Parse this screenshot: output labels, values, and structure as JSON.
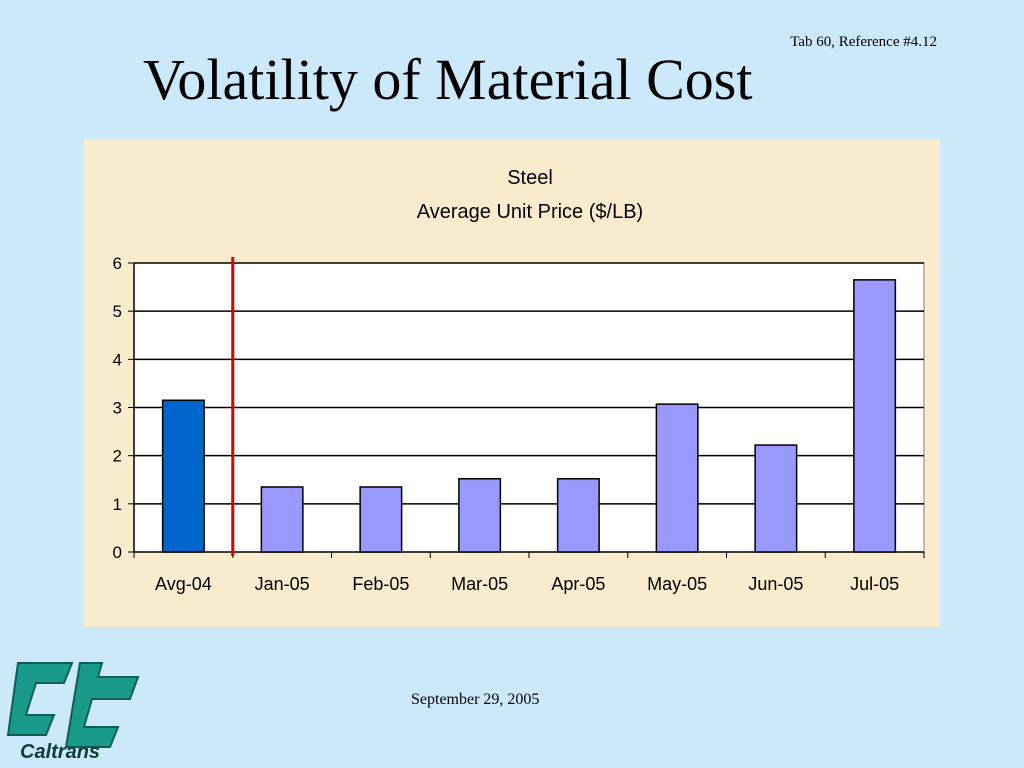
{
  "slide": {
    "reference": "Tab 60, Reference #4.12",
    "title": "Volatility of Material Cost",
    "date": "September 29, 2005",
    "logo_text": "Caltrans"
  },
  "colors": {
    "background": "#cce8fb",
    "chart_panel": "#f9eccd",
    "plot_area": "#ffffff",
    "avg_bar": "#0066cc",
    "month_bar": "#9999ff",
    "divider_line": "#dd0000",
    "logo": "#1a9a8a"
  },
  "chart_data": {
    "type": "bar",
    "title": "Steel",
    "subtitle": "Average Unit Price ($/LB)",
    "xlabel": "",
    "ylabel": "",
    "categories": [
      "Avg-04",
      "Jan-05",
      "Feb-05",
      "Mar-05",
      "Apr-05",
      "May-05",
      "Jun-05",
      "Jul-05"
    ],
    "values": [
      3.15,
      1.35,
      1.35,
      1.52,
      1.52,
      3.07,
      2.22,
      5.65
    ],
    "ylim": [
      0,
      6
    ],
    "yticks": [
      "0",
      "1",
      "2",
      "3",
      "4",
      "5",
      "6"
    ],
    "grid": true,
    "legend": "none",
    "annotations": [
      "vertical red divider line between Avg-04 and Jan-05"
    ]
  }
}
